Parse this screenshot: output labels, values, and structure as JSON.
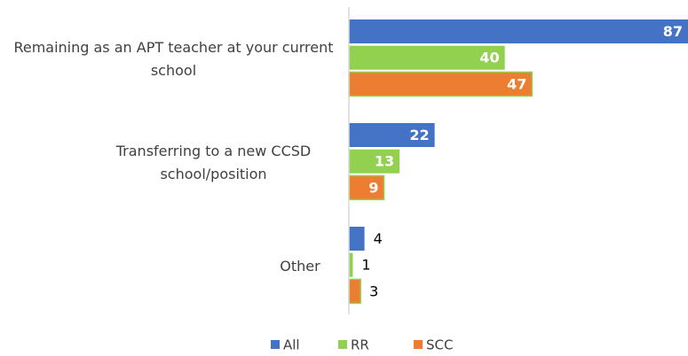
{
  "chart_data": {
    "type": "hbar",
    "categories": [
      "Remaining as an APT teacher at your current school",
      "Transferring to a new CCSD school/position",
      "Other"
    ],
    "series": [
      {
        "name": "All",
        "color": "#4472c4",
        "values": [
          87,
          22,
          4
        ]
      },
      {
        "name": "RR",
        "color": "#92d050",
        "values": [
          40,
          13,
          1
        ]
      },
      {
        "name": "SCC",
        "color": "#ed7d31",
        "values": [
          47,
          9,
          3
        ]
      }
    ],
    "xlim": [
      0,
      87
    ],
    "legend": "bottom"
  }
}
